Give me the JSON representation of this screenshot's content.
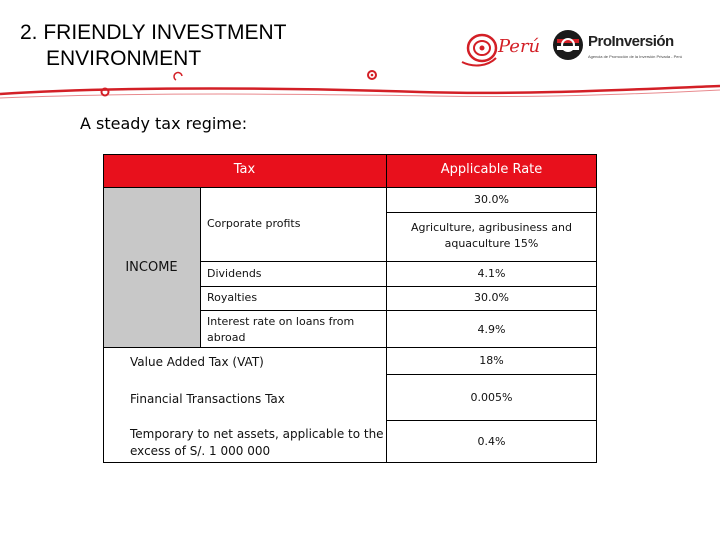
{
  "title": {
    "line1": "2. FRIENDLY INVESTMENT",
    "line2": "ENVIRONMENT"
  },
  "logos": {
    "peru_wordmark": "Perú",
    "proinversion_name": "ProInversión",
    "proinversion_tagline": "Agencia de Promoción de la Inversión Privada - Perú"
  },
  "subtitle": "A steady tax regime:",
  "table": {
    "header": {
      "tax": "Tax",
      "rate": "Applicable Rate"
    },
    "income_label": "INCOME",
    "rows": {
      "corporate_label": "Corporate profits",
      "corporate_rate": "30.0%",
      "corporate_rate_alt": "Agriculture, agribusiness and aquaculture 15%",
      "dividends_label": "Dividends",
      "dividends_rate": "4.1%",
      "royalties_label": "Royalties",
      "royalties_rate": "30.0%",
      "interest_label": "Interest rate on loans from abroad",
      "interest_rate": "4.9%",
      "vat_label": "Value Added Tax (VAT)",
      "vat_rate": "18%",
      "ftt_label": "Financial Transactions Tax",
      "ftt_rate": "0.005%",
      "tna_label": "Temporary to net assets, applicable to the excess of  S/. 1 000 000",
      "tna_rate": "0.4%"
    }
  },
  "colors": {
    "header_red": "#e8101c",
    "income_gray": "#c8c8c8",
    "swoosh_red": "#d31f26"
  }
}
